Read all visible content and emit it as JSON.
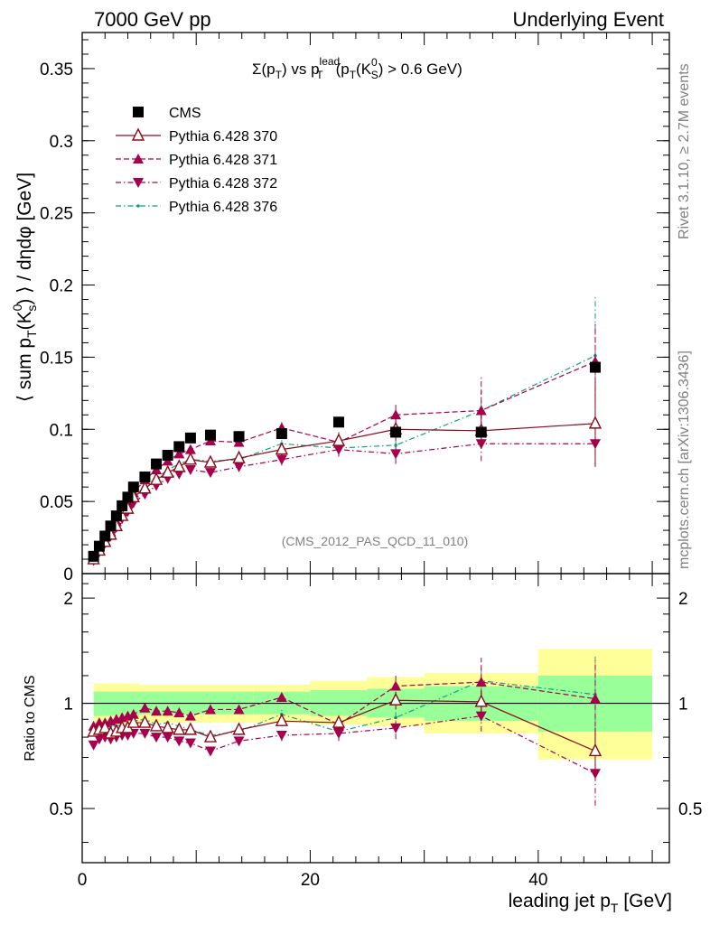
{
  "header": {
    "left": "7000 GeV pp",
    "right": "Underlying Event"
  },
  "side_labels": {
    "rivet": "Rivet 3.1.10, ≥ 2.7M events",
    "mcplots": "mcplots.cern.ch [arXiv:1306.3436]"
  },
  "chart_data": {
    "type": "scatter",
    "title_parts": {
      "sigma": "Σ(p",
      "T1": "T",
      "vs": ") vs p",
      "lead_sup": "lead",
      "T2": "T",
      "open": "(p",
      "T3": "T",
      "K": "(K",
      "zero": "0",
      "S": "S",
      "tail": ") > 0.6 GeV)"
    },
    "analysis_label": "(CMS_2012_PAS_QCD_11_010)",
    "ylabel_parts": {
      "a": "⟨ sum p",
      "T": "T",
      "b": "(K",
      "zero": "0",
      "s": "s",
      "c": ") ⟩ / dηdφ [GeV]"
    },
    "xlabel_parts": {
      "a": "leading jet p",
      "T": "T",
      "b": " [GeV]"
    },
    "ratio_ylabel": "Ratio to CMS",
    "xlim": [
      0,
      51.5
    ],
    "ylim": [
      0,
      0.375
    ],
    "ratio_ylim": [
      0.35,
      2.35
    ],
    "x_ticks": [
      "0",
      "20",
      "40"
    ],
    "x_tick_values": [
      0,
      20,
      40
    ],
    "y_ticks": [
      "0",
      "0.05",
      "0.1",
      "0.15",
      "0.2",
      "0.25",
      "0.3",
      "0.35"
    ],
    "y_tick_values": [
      0,
      0.05,
      0.1,
      0.15,
      0.2,
      0.25,
      0.3,
      0.35
    ],
    "ratio_ticks": [
      "0.5",
      "1",
      "2"
    ],
    "ratio_tick_values": [
      0.5,
      1,
      2
    ],
    "x": [
      1.0,
      1.5,
      2.0,
      2.5,
      3.0,
      3.5,
      4.0,
      4.5,
      5.5,
      6.5,
      7.5,
      8.5,
      9.5,
      11.25,
      13.75,
      17.5,
      22.5,
      27.5,
      35.0,
      45.0
    ],
    "series": [
      {
        "name": "CMS",
        "color": "#000000",
        "marker": "square",
        "line": "none",
        "values": [
          0.012,
          0.019,
          0.026,
          0.033,
          0.04,
          0.047,
          0.053,
          0.06,
          0.067,
          0.076,
          0.082,
          0.088,
          0.094,
          0.096,
          0.095,
          0.097,
          0.105,
          0.098,
          0.098,
          0.143
        ]
      },
      {
        "name": "Pythia 6.428 370",
        "color": "#8b0d1a",
        "marker": "open-triangle-up",
        "line": "solid",
        "values": [
          0.01,
          0.016,
          0.022,
          0.027,
          0.033,
          0.04,
          0.045,
          0.053,
          0.059,
          0.065,
          0.07,
          0.074,
          0.079,
          0.077,
          0.08,
          0.086,
          0.092,
          0.1,
          0.099,
          0.104
        ],
        "errors": [
          0,
          0,
          0,
          0,
          0,
          0,
          0,
          0,
          0,
          0,
          0,
          0,
          0,
          0.002,
          0.003,
          0.004,
          0.006,
          0.008,
          0.012,
          0.03
        ]
      },
      {
        "name": "Pythia 6.428 371",
        "color": "#a8004e",
        "marker": "filled-triangle-up",
        "line": "dashed",
        "values": [
          0.011,
          0.017,
          0.023,
          0.029,
          0.036,
          0.043,
          0.049,
          0.056,
          0.065,
          0.072,
          0.078,
          0.083,
          0.086,
          0.092,
          0.091,
          0.101,
          0.091,
          0.11,
          0.113,
          0.147
        ],
        "errors": [
          0,
          0,
          0,
          0,
          0,
          0,
          0,
          0,
          0,
          0,
          0,
          0,
          0,
          0.003,
          0.003,
          0.004,
          0.006,
          0.008,
          0.023,
          0.026
        ]
      },
      {
        "name": "Pythia 6.428 372",
        "color": "#a8004e",
        "marker": "filled-triangle-down",
        "line": "dashdot",
        "values": [
          0.009,
          0.015,
          0.021,
          0.026,
          0.032,
          0.038,
          0.043,
          0.049,
          0.055,
          0.061,
          0.066,
          0.069,
          0.072,
          0.07,
          0.074,
          0.079,
          0.086,
          0.083,
          0.09,
          0.09
        ],
        "errors": [
          0,
          0,
          0,
          0,
          0,
          0,
          0,
          0,
          0,
          0,
          0,
          0,
          0,
          0.003,
          0.003,
          0.004,
          0.005,
          0.007,
          0.012,
          0.016
        ]
      },
      {
        "name": "Pythia 6.428 376",
        "color": "#10a07e",
        "marker": "small-dot",
        "line": "dashdot",
        "values": [
          0.01,
          0.016,
          0.022,
          0.028,
          0.034,
          0.041,
          0.046,
          0.053,
          0.06,
          0.066,
          0.072,
          0.076,
          0.079,
          0.078,
          0.079,
          0.09,
          0.087,
          0.089,
          0.113,
          0.151
        ],
        "errors": [
          0,
          0,
          0,
          0,
          0,
          0,
          0,
          0,
          0,
          0,
          0,
          0,
          0,
          0.003,
          0.003,
          0.004,
          0.005,
          0.008,
          0.014,
          0.042
        ]
      }
    ],
    "ratio_series": [
      {
        "name": "Pythia 6.428 370",
        "values": [
          0.83,
          0.84,
          0.85,
          0.82,
          0.83,
          0.85,
          0.85,
          0.88,
          0.88,
          0.86,
          0.85,
          0.84,
          0.84,
          0.8,
          0.84,
          0.89,
          0.88,
          1.02,
          1.01,
          0.73
        ],
        "errors": [
          0,
          0,
          0,
          0,
          0,
          0,
          0,
          0,
          0,
          0,
          0,
          0,
          0,
          0.02,
          0.02,
          0.03,
          0.04,
          0.06,
          0.08,
          0.12
        ]
      },
      {
        "name": "Pythia 6.428 371",
        "values": [
          0.86,
          0.88,
          0.88,
          0.89,
          0.9,
          0.91,
          0.92,
          0.93,
          0.97,
          0.95,
          0.95,
          0.94,
          0.92,
          0.96,
          0.96,
          1.04,
          0.87,
          1.12,
          1.15,
          1.03
        ],
        "errors": [
          0,
          0,
          0,
          0,
          0,
          0,
          0,
          0,
          0,
          0,
          0,
          0,
          0,
          0.02,
          0.02,
          0.03,
          0.04,
          0.08,
          0.2,
          0.3
        ]
      },
      {
        "name": "Pythia 6.428 372",
        "values": [
          0.76,
          0.79,
          0.8,
          0.79,
          0.8,
          0.81,
          0.81,
          0.82,
          0.82,
          0.8,
          0.8,
          0.78,
          0.77,
          0.73,
          0.78,
          0.81,
          0.82,
          0.85,
          0.92,
          0.63
        ],
        "errors": [
          0,
          0,
          0,
          0,
          0,
          0,
          0,
          0,
          0,
          0,
          0,
          0,
          0,
          0.02,
          0.02,
          0.03,
          0.04,
          0.06,
          0.09,
          0.12
        ]
      },
      {
        "name": "Pythia 6.428 376",
        "values": [
          0.84,
          0.85,
          0.86,
          0.86,
          0.86,
          0.87,
          0.87,
          0.89,
          0.9,
          0.87,
          0.88,
          0.86,
          0.84,
          0.81,
          0.83,
          0.93,
          0.83,
          0.91,
          1.16,
          1.06
        ],
        "errors": [
          0,
          0,
          0,
          0,
          0,
          0,
          0,
          0,
          0,
          0,
          0,
          0,
          0,
          0.02,
          0.02,
          0.03,
          0.04,
          0.07,
          0.12,
          0.3
        ]
      }
    ],
    "uncertainty_bands": [
      {
        "x": [
          1,
          5
        ],
        "inner": [
          0.92,
          1.08
        ],
        "outer": [
          0.87,
          1.14
        ]
      },
      {
        "x": [
          5,
          15
        ],
        "inner": [
          0.93,
          1.08
        ],
        "outer": [
          0.88,
          1.13
        ]
      },
      {
        "x": [
          15,
          20
        ],
        "inner": [
          0.93,
          1.08
        ],
        "outer": [
          0.88,
          1.13
        ]
      },
      {
        "x": [
          20,
          25
        ],
        "inner": [
          0.92,
          1.09
        ],
        "outer": [
          0.87,
          1.16
        ]
      },
      {
        "x": [
          25,
          30
        ],
        "inner": [
          0.91,
          1.1
        ],
        "outer": [
          0.86,
          1.19
        ]
      },
      {
        "x": [
          30,
          40
        ],
        "inner": [
          0.89,
          1.12
        ],
        "outer": [
          0.82,
          1.22
        ]
      },
      {
        "x": [
          40,
          50
        ],
        "inner": [
          0.83,
          1.2
        ],
        "outer": [
          0.69,
          1.43
        ]
      }
    ],
    "band_colors": {
      "inner": "#99ff99",
      "outer": "#ffff99"
    }
  }
}
